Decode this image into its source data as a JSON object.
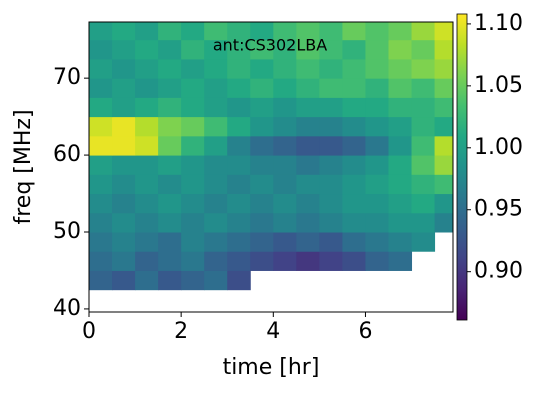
{
  "chart_data": {
    "type": "heatmap",
    "annotation": "ant:CS302LBA",
    "xlabel": "time [hr]",
    "ylabel": "freq [MHz]",
    "colormap": "viridis",
    "xbins": [
      0,
      0.5,
      1,
      1.5,
      2,
      2.5,
      3,
      3.5,
      4,
      4.5,
      5,
      5.5,
      6,
      6.5,
      7,
      7.5,
      7.9
    ],
    "ybins": [
      42.5,
      45,
      47.5,
      50,
      52.5,
      55,
      57.5,
      60,
      62.5,
      65,
      67.5,
      70,
      72.5,
      75,
      77.3
    ],
    "values": [
      [
        0.94,
        0.93,
        0.95,
        0.93,
        0.94,
        0.95,
        0.92,
        null,
        null,
        null,
        null,
        null,
        null,
        null,
        null,
        null
      ],
      [
        0.95,
        0.96,
        0.94,
        0.95,
        0.96,
        0.94,
        0.93,
        0.92,
        0.91,
        0.9,
        0.91,
        0.92,
        0.94,
        0.95,
        null,
        null
      ],
      [
        0.96,
        0.97,
        0.96,
        0.95,
        0.97,
        0.96,
        0.95,
        0.94,
        0.93,
        0.94,
        0.93,
        0.95,
        0.96,
        0.97,
        0.98,
        null
      ],
      [
        0.97,
        0.98,
        0.97,
        0.98,
        0.97,
        0.98,
        0.97,
        0.96,
        0.97,
        0.96,
        0.97,
        0.98,
        0.98,
        0.99,
        0.99,
        0.97
      ],
      [
        0.98,
        0.97,
        0.98,
        0.99,
        0.98,
        0.97,
        0.98,
        0.97,
        0.98,
        0.97,
        0.98,
        0.99,
        0.99,
        1.0,
        1.01,
        0.99
      ],
      [
        0.99,
        0.98,
        0.99,
        0.98,
        0.99,
        0.98,
        0.97,
        0.98,
        0.97,
        0.98,
        0.98,
        0.99,
        1.0,
        1.01,
        1.02,
        1.03
      ],
      [
        1.0,
        0.99,
        0.99,
        1.0,
        0.99,
        0.98,
        0.98,
        0.97,
        0.97,
        0.96,
        0.97,
        0.98,
        0.99,
        1.01,
        1.04,
        1.07
      ],
      [
        1.1,
        1.1,
        1.09,
        1.05,
        1.02,
        1.0,
        0.97,
        0.95,
        0.94,
        0.93,
        0.93,
        0.94,
        0.96,
        0.99,
        1.03,
        1.08
      ],
      [
        1.09,
        1.1,
        1.08,
        1.06,
        1.05,
        1.03,
        1.01,
        0.99,
        0.98,
        0.97,
        0.97,
        0.98,
        0.99,
        1.0,
        1.02,
        1.01
      ],
      [
        1.01,
        1.0,
        1.01,
        1.02,
        1.01,
        1.0,
        0.99,
        1.0,
        0.99,
        1.0,
        1.0,
        1.01,
        1.01,
        1.02,
        1.02,
        1.03
      ],
      [
        0.99,
        1.0,
        0.99,
        1.0,
        1.01,
        1.0,
        1.01,
        1.02,
        1.01,
        1.02,
        1.03,
        1.03,
        1.02,
        1.04,
        1.03,
        1.05
      ],
      [
        1.0,
        0.99,
        1.0,
        1.01,
        1.0,
        1.01,
        1.02,
        1.01,
        1.02,
        1.03,
        1.02,
        1.03,
        1.04,
        1.05,
        1.06,
        1.07
      ],
      [
        0.99,
        1.0,
        1.01,
        1.0,
        1.02,
        1.01,
        1.02,
        1.03,
        1.02,
        1.04,
        1.03,
        1.02,
        1.04,
        1.06,
        1.05,
        1.08
      ],
      [
        1.0,
        1.01,
        1.0,
        1.02,
        1.01,
        1.03,
        1.02,
        1.01,
        1.03,
        1.04,
        1.03,
        1.05,
        1.04,
        1.05,
        1.07,
        1.09
      ]
    ],
    "xlim": [
      0,
      7.9
    ],
    "xticks": [
      0,
      2,
      4,
      6
    ],
    "ylim": [
      39.6,
      77.3
    ],
    "yticks": [
      40,
      50,
      60,
      70
    ],
    "clim": [
      0.861,
      1.108
    ],
    "cticks": [
      {
        "value": 0.9,
        "label": "0.90"
      },
      0.95,
      {
        "value": 1.0,
        "label": "1.00"
      },
      1.05,
      {
        "value": 1.1,
        "label": "1.10"
      }
    ]
  }
}
